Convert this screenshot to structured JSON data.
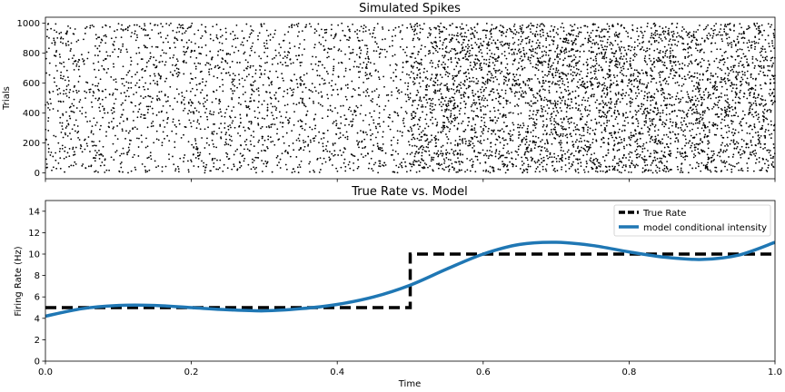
{
  "chart_data": [
    {
      "type": "scatter",
      "title": "Simulated Spikes",
      "xlabel": "",
      "ylabel": "Trials",
      "xlim": [
        0,
        1
      ],
      "ylim": [
        -40,
        1040
      ],
      "yticks": [
        0,
        200,
        400,
        600,
        800,
        1000
      ],
      "xticks": [
        0,
        0.2,
        0.4,
        0.6,
        0.8,
        1.0
      ],
      "show_xtick_labels": false,
      "trials": 1000,
      "spike_rate_hz": [
        {
          "t_start": 0.0,
          "t_end": 0.5,
          "rate": 5
        },
        {
          "t_start": 0.5,
          "t_end": 1.0,
          "rate": 10
        }
      ],
      "marker_color": "#000000",
      "grid": false
    },
    {
      "type": "line",
      "title": "True Rate vs. Model",
      "xlabel": "Time",
      "ylabel": "Firing Rate (Hz)",
      "xlim": [
        0,
        1
      ],
      "ylim": [
        0,
        15
      ],
      "yticks": [
        0,
        2,
        4,
        6,
        8,
        10,
        12,
        14
      ],
      "xticks": [
        0,
        0.2,
        0.4,
        0.6,
        0.8,
        1.0
      ],
      "xtick_labels": [
        "0.0",
        "0.2",
        "0.4",
        "0.6",
        "0.8",
        "1.0"
      ],
      "legend": "top-right",
      "grid": false,
      "series": [
        {
          "name": "True Rate",
          "style": "dashed",
          "color": "#000000",
          "x": [
            0.0,
            0.5,
            0.5,
            1.0
          ],
          "y": [
            5,
            5,
            10,
            10
          ]
        },
        {
          "name": "model conditional intensity",
          "style": "solid",
          "color": "#1f77b4",
          "x": [
            0.0,
            0.05,
            0.1,
            0.15,
            0.2,
            0.25,
            0.3,
            0.35,
            0.4,
            0.45,
            0.5,
            0.55,
            0.6,
            0.65,
            0.7,
            0.75,
            0.8,
            0.85,
            0.9,
            0.95,
            1.0
          ],
          "y": [
            4.2,
            4.9,
            5.2,
            5.2,
            5.0,
            4.8,
            4.7,
            4.9,
            5.3,
            6.0,
            7.1,
            8.6,
            10.0,
            10.9,
            11.1,
            10.8,
            10.2,
            9.7,
            9.5,
            9.9,
            11.1
          ]
        }
      ]
    }
  ]
}
